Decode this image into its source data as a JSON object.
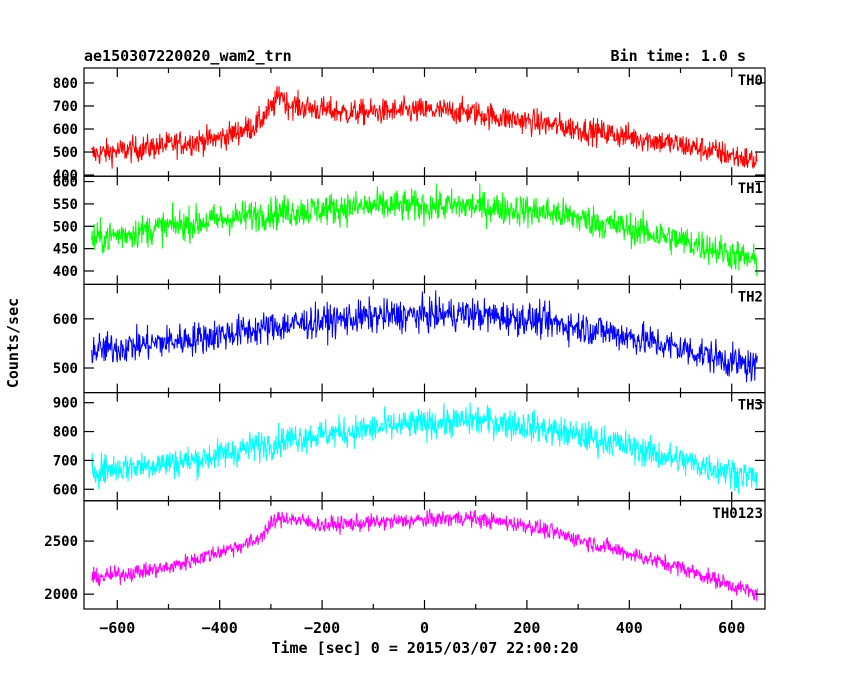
{
  "header": {
    "title": "ae150307220020_wam2_trn",
    "bin_time": "Bin time: 1.0 s"
  },
  "chart_data": {
    "type": "line",
    "xlabel": "Time [sec] 0 = 2015/03/07 22:00:20",
    "ylabel": "Counts/sec",
    "xlim": [
      -665,
      665
    ],
    "xticks": [
      -600,
      -400,
      -200,
      0,
      200,
      400,
      600
    ],
    "xtick_labels": [
      "−600",
      "−400",
      "−200",
      "0",
      "200",
      "400",
      "600"
    ],
    "panels": [
      {
        "name": "TH0",
        "color": "#ff0000",
        "ylim": [
          395,
          865
        ],
        "yticks": [
          400,
          500,
          600,
          700,
          800
        ],
        "ytick_labels": [
          "400",
          "500",
          "600",
          "700",
          "800"
        ],
        "profile": [
          [
            -650,
            490
          ],
          [
            -520,
            525
          ],
          [
            -400,
            560
          ],
          [
            -330,
            615
          ],
          [
            -295,
            700
          ],
          [
            -280,
            760
          ],
          [
            -270,
            710
          ],
          [
            -240,
            695
          ],
          [
            -150,
            670
          ],
          [
            0,
            680
          ],
          [
            80,
            675
          ],
          [
            150,
            650
          ],
          [
            300,
            600
          ],
          [
            450,
            550
          ],
          [
            550,
            510
          ],
          [
            650,
            460
          ]
        ],
        "noise": 40
      },
      {
        "name": "TH1",
        "color": "#00ff00",
        "ylim": [
          370,
          612
        ],
        "yticks": [
          400,
          450,
          500,
          550,
          600
        ],
        "ytick_labels": [
          "400",
          "450",
          "500",
          "550",
          "600"
        ],
        "profile": [
          [
            -650,
            470
          ],
          [
            -500,
            500
          ],
          [
            -300,
            530
          ],
          [
            -100,
            545
          ],
          [
            100,
            545
          ],
          [
            250,
            530
          ],
          [
            400,
            495
          ],
          [
            550,
            455
          ],
          [
            650,
            420
          ]
        ],
        "noise": 26
      },
      {
        "name": "TH2",
        "color": "#0000ff",
        "ylim": [
          450,
          670
        ],
        "yticks": [
          500,
          600
        ],
        "ytick_labels": [
          "500",
          "600"
        ],
        "profile": [
          [
            -650,
            535
          ],
          [
            -450,
            560
          ],
          [
            -250,
            590
          ],
          [
            -100,
            605
          ],
          [
            80,
            610
          ],
          [
            200,
            600
          ],
          [
            350,
            575
          ],
          [
            500,
            540
          ],
          [
            650,
            500
          ]
        ],
        "noise": 24
      },
      {
        "name": "TH3",
        "color": "#00ffff",
        "ylim": [
          560,
          935
        ],
        "yticks": [
          600,
          700,
          800,
          900
        ],
        "ytick_labels": [
          "600",
          "700",
          "800",
          "900"
        ],
        "profile": [
          [
            -650,
            665
          ],
          [
            -450,
            700
          ],
          [
            -250,
            780
          ],
          [
            -50,
            820
          ],
          [
            100,
            840
          ],
          [
            200,
            820
          ],
          [
            350,
            770
          ],
          [
            500,
            700
          ],
          [
            650,
            640
          ]
        ],
        "noise": 38
      },
      {
        "name": "TH0123",
        "color": "#ff00ff",
        "ylim": [
          1860,
          2880
        ],
        "yticks": [
          2000,
          2500
        ],
        "ytick_labels": [
          "2000",
          "2500"
        ],
        "profile": [
          [
            -650,
            2150
          ],
          [
            -500,
            2250
          ],
          [
            -400,
            2400
          ],
          [
            -330,
            2500
          ],
          [
            -290,
            2700
          ],
          [
            -270,
            2720
          ],
          [
            -200,
            2650
          ],
          [
            0,
            2700
          ],
          [
            80,
            2720
          ],
          [
            200,
            2650
          ],
          [
            350,
            2450
          ],
          [
            500,
            2250
          ],
          [
            650,
            2000
          ]
        ],
        "noise": 55
      }
    ]
  }
}
